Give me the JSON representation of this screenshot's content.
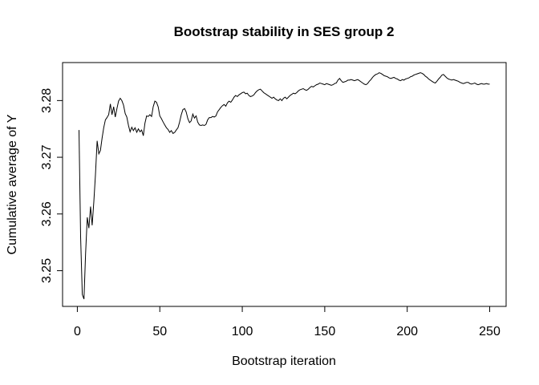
{
  "figure": {
    "background": "#ffffff",
    "foreground": "#000000"
  },
  "chart_data": {
    "type": "line",
    "title": "Bootstrap stability in SES group 2",
    "xlabel": "Bootstrap iteration",
    "ylabel": "Cumulative average of Y",
    "grid": false,
    "legend": null,
    "line_color": "#000000",
    "x_ticks": [
      0,
      50,
      100,
      150,
      200,
      250
    ],
    "y_ticks": [
      3.25,
      3.26,
      3.27,
      3.28
    ],
    "xlim": [
      -8.96,
      259.96
    ],
    "ylim": [
      3.2437,
      3.2867
    ],
    "series": [
      {
        "name": "cumulative-average-of-Y",
        "x_start": 1,
        "x_step": 1,
        "values": [
          3.2748,
          3.256,
          3.2458,
          3.245,
          3.253,
          3.2594,
          3.2575,
          3.2613,
          3.258,
          3.2622,
          3.2669,
          3.2729,
          3.2706,
          3.2712,
          3.2734,
          3.2752,
          3.2766,
          3.277,
          3.2775,
          3.2794,
          3.2775,
          3.2789,
          3.2771,
          3.2786,
          3.2799,
          3.2804,
          3.28,
          3.2792,
          3.2777,
          3.2771,
          3.2756,
          3.2745,
          3.2753,
          3.2747,
          3.2752,
          3.2744,
          3.275,
          3.2745,
          3.2748,
          3.2738,
          3.276,
          3.2773,
          3.2772,
          3.2775,
          3.2772,
          3.2789,
          3.2799,
          3.2797,
          3.2789,
          3.2773,
          3.2768,
          3.2762,
          3.2757,
          3.2752,
          3.2749,
          3.2744,
          3.2747,
          3.2742,
          3.2744,
          3.2748,
          3.2752,
          3.2762,
          3.2775,
          3.2784,
          3.2786,
          3.278,
          3.2768,
          3.2761,
          3.2764,
          3.2776,
          3.2769,
          3.2773,
          3.2762,
          3.2757,
          3.2756,
          3.2757,
          3.2756,
          3.2758,
          3.2766,
          3.277,
          3.277,
          3.2772,
          3.2771,
          3.2773,
          3.278,
          3.2784,
          3.2788,
          3.2791,
          3.2793,
          3.279,
          3.2796,
          3.2799,
          3.2797,
          3.2801,
          3.2806,
          3.2809,
          3.2807,
          3.281,
          3.2812,
          3.2814,
          3.2815,
          3.2812,
          3.2813,
          3.2809,
          3.2807,
          3.2808,
          3.281,
          3.2814,
          3.2817,
          3.2819,
          3.282,
          3.2817,
          3.2814,
          3.2812,
          3.281,
          3.2808,
          3.2806,
          3.2804,
          3.2806,
          3.2803,
          3.2801,
          3.28,
          3.2803,
          3.28,
          3.2804,
          3.2806,
          3.2803,
          3.2806,
          3.2809,
          3.2811,
          3.2813,
          3.2812,
          3.2814,
          3.2817,
          3.2819,
          3.282,
          3.2821,
          3.2819,
          3.2818,
          3.282,
          3.2823,
          3.2825,
          3.2824,
          3.2826,
          3.2828,
          3.2829,
          3.2831,
          3.283,
          3.2829,
          3.2828,
          3.283,
          3.2829,
          3.2828,
          3.2827,
          3.2828,
          3.283,
          3.2831,
          3.2836,
          3.2839,
          3.2835,
          3.2832,
          3.2833,
          3.2834,
          3.2836,
          3.2836,
          3.2837,
          3.2836,
          3.2835,
          3.2836,
          3.2837,
          3.2835,
          3.2833,
          3.2831,
          3.2829,
          3.2828,
          3.283,
          3.2834,
          3.2837,
          3.2841,
          3.2844,
          3.2846,
          3.2847,
          3.2849,
          3.2848,
          3.2846,
          3.2844,
          3.2843,
          3.2842,
          3.284,
          3.2839,
          3.284,
          3.2841,
          3.2839,
          3.2838,
          3.2836,
          3.2835,
          3.2837,
          3.2836,
          3.2838,
          3.2839,
          3.284,
          3.2842,
          3.2843,
          3.2845,
          3.2846,
          3.2847,
          3.2848,
          3.2849,
          3.2848,
          3.2846,
          3.2843,
          3.2841,
          3.2838,
          3.2836,
          3.2834,
          3.2832,
          3.2831,
          3.2834,
          3.2838,
          3.2841,
          3.2845,
          3.2846,
          3.2843,
          3.284,
          3.2838,
          3.2837,
          3.2836,
          3.2837,
          3.2836,
          3.2835,
          3.2834,
          3.2832,
          3.2831,
          3.283,
          3.2831,
          3.2832,
          3.2832,
          3.283,
          3.2829,
          3.283,
          3.2831,
          3.2829,
          3.2828,
          3.2829,
          3.283,
          3.2829,
          3.2829,
          3.283,
          3.2829,
          3.2829
        ]
      }
    ]
  }
}
